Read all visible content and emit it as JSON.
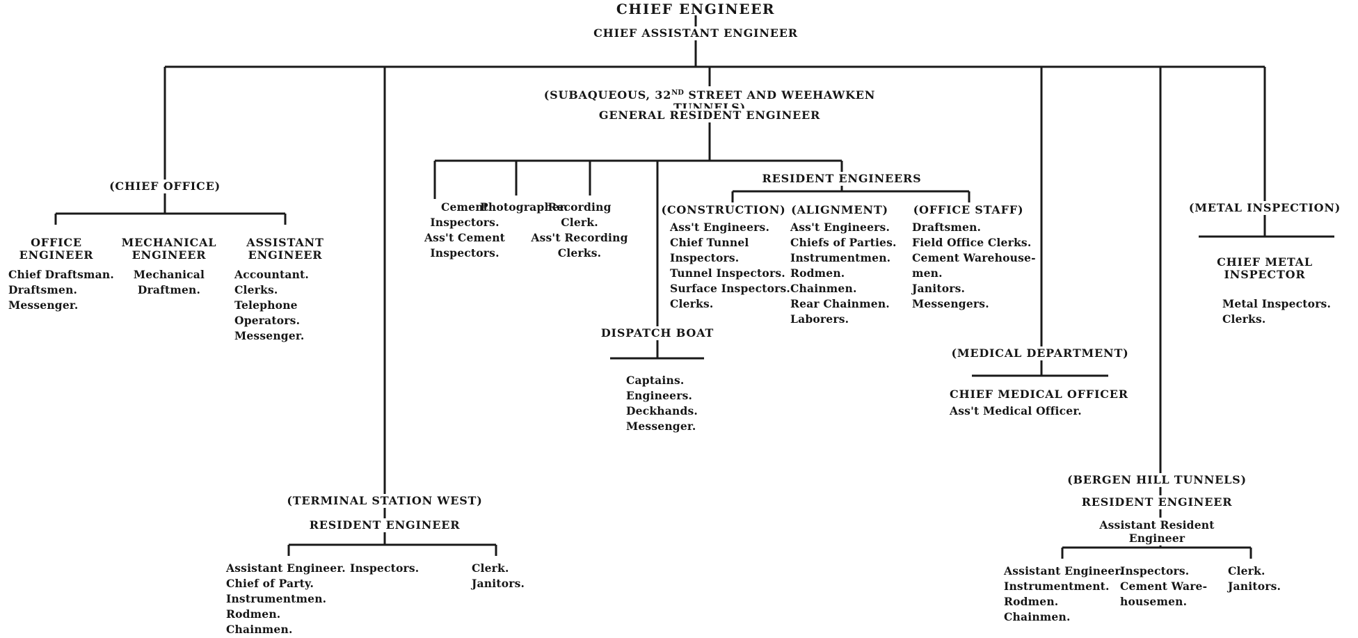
{
  "colors": {
    "ink": "#191919",
    "paper": "#ffffff"
  },
  "top": {
    "chief_engineer": "CHIEF ENGINEER",
    "chief_assistant": "CHIEF ASSISTANT ENGINEER"
  },
  "chief_office": {
    "label": "(CHIEF OFFICE)",
    "children": [
      {
        "title": [
          "OFFICE",
          "ENGINEER"
        ],
        "staff": [
          "Chief Draftsman.",
          "Draftsmen.",
          "Messenger."
        ]
      },
      {
        "title": [
          "MECHANICAL",
          "ENGINEER"
        ],
        "staff": [
          "Mechanical",
          "Draftmen."
        ]
      },
      {
        "title": [
          "ASSISTANT",
          "ENGINEER"
        ],
        "staff": [
          "Accountant.",
          "Clerks.",
          "Telephone Operators.",
          "Messenger."
        ]
      }
    ]
  },
  "subaqueous": {
    "label_pre": "(SUBAQUEOUS, 32",
    "label_sup": "ND",
    "label_post": " STREET AND WEEHAWKEN TUNNELS)",
    "general_resident_engineer": "GENERAL RESIDENT ENGINEER",
    "cement": {
      "lines": [
        "Cement",
        "Inspectors.",
        "Ass't Cement",
        "Inspectors."
      ]
    },
    "photographer": {
      "lines": [
        "Photographer."
      ]
    },
    "recording": {
      "lines": [
        "Recording",
        "Clerk.",
        "Ass't Recording",
        "Clerks."
      ]
    },
    "dispatch_boat": {
      "label": "DISPATCH BOAT",
      "staff": [
        "Captains.",
        "Engineers.",
        "Deckhands.",
        "Messenger."
      ]
    },
    "resident_engineers": {
      "label": "RESIDENT ENGINEERS",
      "groups": [
        {
          "label": "(CONSTRUCTION)",
          "staff": [
            "Ass't Engineers.",
            "Chief Tunnel",
            "Inspectors.",
            "Tunnel Inspectors.",
            "Surface Inspectors.",
            "Clerks."
          ]
        },
        {
          "label": "(ALIGNMENT)",
          "staff": [
            "Ass't Engineers.",
            "Chiefs of Parties.",
            "Instrumentmen.",
            "Rodmen.",
            "Chainmen.",
            "Rear Chainmen.",
            "Laborers."
          ]
        },
        {
          "label": "(OFFICE STAFF)",
          "staff": [
            "Draftsmen.",
            "Field Office Clerks.",
            "Cement Warehouse-",
            "men.",
            "Janitors.",
            "Messengers."
          ]
        }
      ]
    }
  },
  "medical": {
    "label": "(MEDICAL DEPARTMENT)",
    "title": "CHIEF MEDICAL OFFICER",
    "staff": [
      "Ass't Medical Officer."
    ]
  },
  "metal": {
    "label": "(METAL INSPECTION)",
    "title": [
      "CHIEF METAL",
      "INSPECTOR"
    ],
    "staff": [
      "Metal Inspectors.",
      "Clerks."
    ]
  },
  "terminal_west": {
    "label": "(TERMINAL STATION WEST)",
    "title": "RESIDENT ENGINEER",
    "columns": [
      {
        "staff": [
          "Assistant Engineer.",
          "Chief of Party.",
          "Instrumentmen.",
          "Rodmen.",
          "Chainmen."
        ]
      },
      {
        "staff": [
          "Inspectors."
        ]
      },
      {
        "staff": [
          "Clerk.",
          "Janitors."
        ]
      }
    ]
  },
  "bergen_hill": {
    "label": "(BERGEN HILL TUNNELS)",
    "title": "RESIDENT ENGINEER",
    "subtitle": "Assistant Resident Engineer",
    "columns": [
      {
        "staff": [
          "Assistant Engineer.",
          "Instrumentment.",
          "Rodmen.",
          "Chainmen."
        ]
      },
      {
        "staff": [
          "Inspectors.",
          "Cement Ware-",
          "housemen."
        ]
      },
      {
        "staff": [
          "Clerk.",
          "Janitors."
        ]
      }
    ]
  }
}
